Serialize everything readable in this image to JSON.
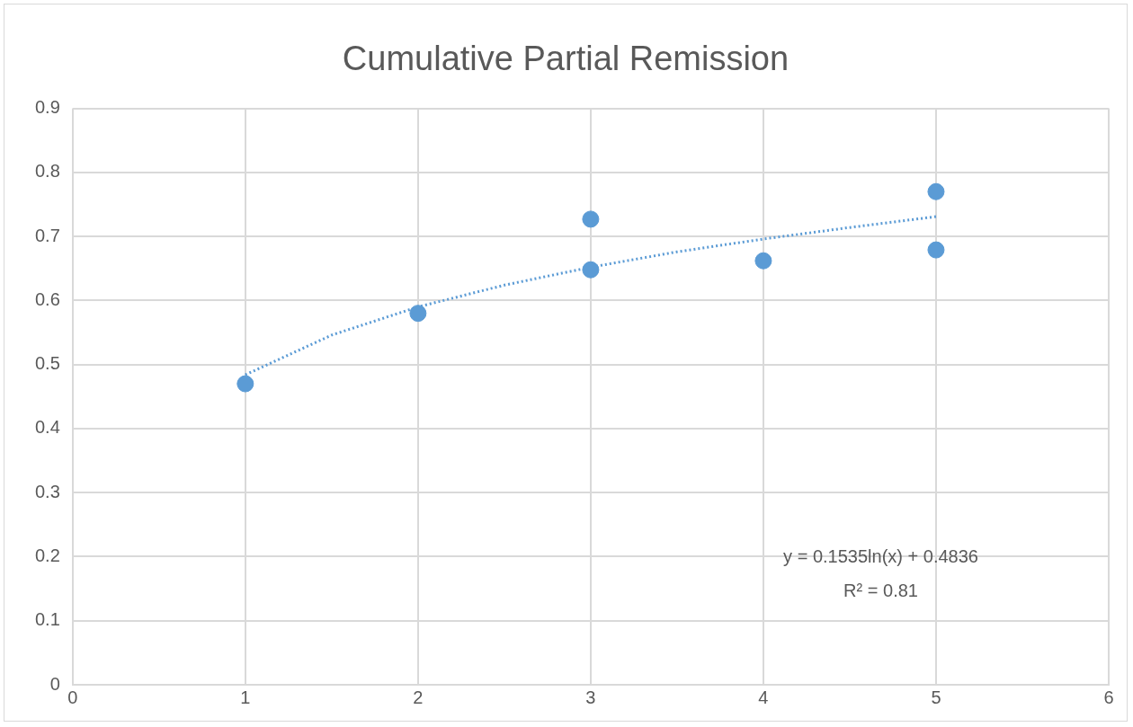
{
  "chart_data": {
    "type": "scatter",
    "title": "Cumulative Partial Remission",
    "series": [
      {
        "type": "scatter",
        "color": "#5b9bd5",
        "marker": "circle",
        "x": [
          1,
          2,
          3,
          3,
          4,
          5,
          5
        ],
        "values": [
          0.47,
          0.58,
          0.727,
          0.648,
          0.662,
          0.77,
          0.679
        ]
      },
      {
        "type": "line",
        "color": "#5b9bd5",
        "line_style": "dotted",
        "marker": "none",
        "x": [
          1,
          1.5,
          2,
          2.5,
          3,
          3.5,
          4,
          4.5,
          5
        ],
        "values": [
          0.484,
          0.546,
          0.59,
          0.624,
          0.652,
          0.676,
          0.696,
          0.714,
          0.731
        ]
      }
    ],
    "xlim": [
      0,
      6
    ],
    "xticks": [
      0,
      1,
      2,
      3,
      4,
      5,
      6
    ],
    "ylim": [
      0,
      0.9
    ],
    "yticks": [
      0,
      0.1,
      0.2,
      0.3,
      0.4,
      0.5,
      0.6,
      0.7,
      0.8,
      0.9
    ],
    "grid": true,
    "legend": false,
    "annotations": [
      "y = 0.1535ln(x) + 0.4836",
      "R² = 0.81"
    ]
  }
}
